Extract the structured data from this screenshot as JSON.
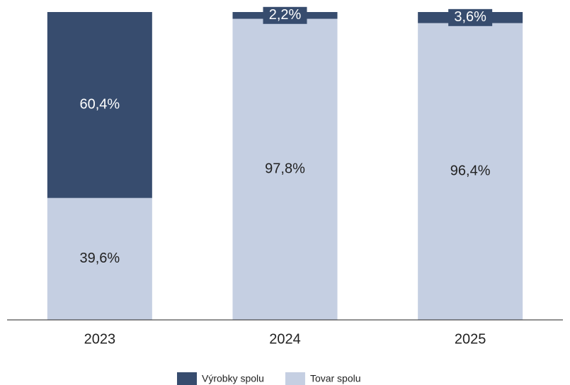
{
  "chart_data": {
    "type": "stacked_bar",
    "categories": [
      "2023",
      "2024",
      "2025"
    ],
    "series": [
      {
        "name": "Výrobky spolu",
        "color": "#374c6e",
        "values": [
          60.4,
          2.2,
          3.6
        ],
        "value_labels": [
          "60,4%",
          "2,2%",
          "3,6%"
        ]
      },
      {
        "name": "Tovar spolu",
        "color": "#c5cfe2",
        "values": [
          39.6,
          97.8,
          96.4
        ],
        "value_labels": [
          "39,6%",
          "97,8%",
          "96,4%"
        ]
      }
    ],
    "ylim": [
      0,
      100
    ]
  }
}
